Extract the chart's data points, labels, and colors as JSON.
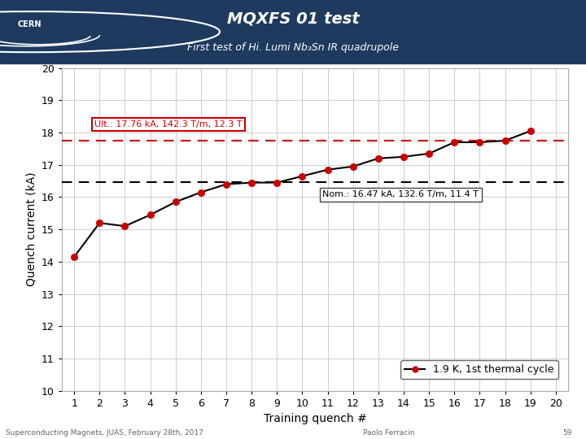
{
  "title_line1": "MQXFS 01 test",
  "title_line2": "First test of Hi. Lumi Nb₃Sn IR quadrupole",
  "header_bg": "#1e3a5f",
  "header_text_color": "#ffffff",
  "x_data": [
    1,
    2,
    3,
    4,
    5,
    6,
    7,
    8,
    9,
    10,
    11,
    12,
    13,
    14,
    15,
    16,
    17,
    18,
    19
  ],
  "y_data": [
    14.15,
    15.2,
    15.1,
    15.45,
    15.85,
    16.15,
    16.4,
    16.45,
    16.45,
    16.65,
    16.85,
    16.95,
    17.2,
    17.25,
    17.35,
    17.7,
    17.7,
    17.75,
    18.05
  ],
  "line_color": "#000000",
  "marker_color": "#cc0000",
  "ult_line_y": 17.76,
  "ult_line_color": "#cc0000",
  "nom_line_y": 16.47,
  "nom_line_color": "#000000",
  "ult_label": "Ult.: 17.76 kA, 142.3 T/m, 12.3 T",
  "nom_label": "Nom.: 16.47 kA, 132.6 T/m, 11.4 T",
  "xlabel": "Training quench #",
  "ylabel": "Quench current (kA)",
  "ylim": [
    10,
    20
  ],
  "xlim": [
    0.5,
    20.5
  ],
  "yticks": [
    10,
    11,
    12,
    13,
    14,
    15,
    16,
    17,
    18,
    19,
    20
  ],
  "xticks": [
    1,
    2,
    3,
    4,
    5,
    6,
    7,
    8,
    9,
    10,
    11,
    12,
    13,
    14,
    15,
    16,
    17,
    18,
    19,
    20
  ],
  "legend_label": "1.9 K, 1st thermal cycle",
  "footer_left": "Superconducting Magnets, JUAS, February 28th, 2017",
  "footer_right": "Paolo Ferracin",
  "footer_page": "59",
  "grid_color": "#cccccc",
  "bg_color": "#ffffff"
}
